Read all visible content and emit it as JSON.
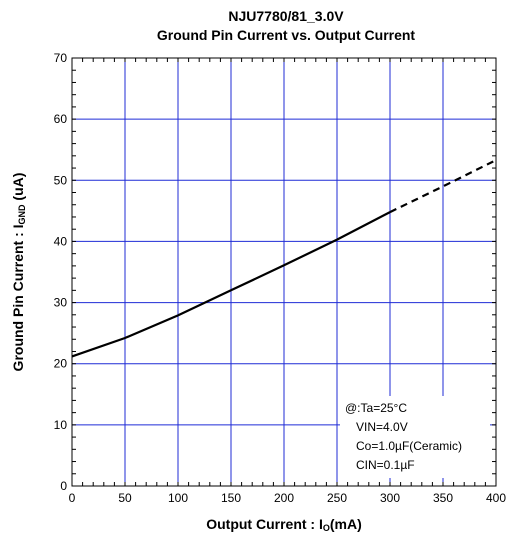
{
  "chart_data": {
    "type": "line",
    "title_line1": "NJU7780/81_3.0V",
    "title_line2": "Ground Pin Current vs. Output Current",
    "xlabel_main": "Output Current : I",
    "xlabel_sub": "O",
    "xlabel_unit": "(mA)",
    "ylabel_main": "Ground Pin Current : I",
    "ylabel_sub": "GND",
    "ylabel_unit": " (uA)",
    "xlim": [
      0,
      400
    ],
    "ylim": [
      0,
      70
    ],
    "x_ticks": [
      0,
      50,
      100,
      150,
      200,
      250,
      300,
      350,
      400
    ],
    "y_ticks": [
      0,
      10,
      20,
      30,
      40,
      50,
      60,
      70
    ],
    "grid": true,
    "series": [
      {
        "style": "solid",
        "x": [
          0,
          50,
          100,
          150,
          200,
          250,
          300
        ],
        "y": [
          21.2,
          24.2,
          27.9,
          32.0,
          36.1,
          40.3,
          44.8
        ]
      },
      {
        "style": "dashed",
        "x": [
          300,
          350,
          400
        ],
        "y": [
          44.8,
          49.0,
          53.3
        ]
      }
    ],
    "conditions": {
      "line1": "@:Ta=25°C",
      "line2": "VIN=4.0V",
      "line3": "Co=1.0µF(Ceramic)",
      "line4": "CIN=0.1µF"
    }
  }
}
